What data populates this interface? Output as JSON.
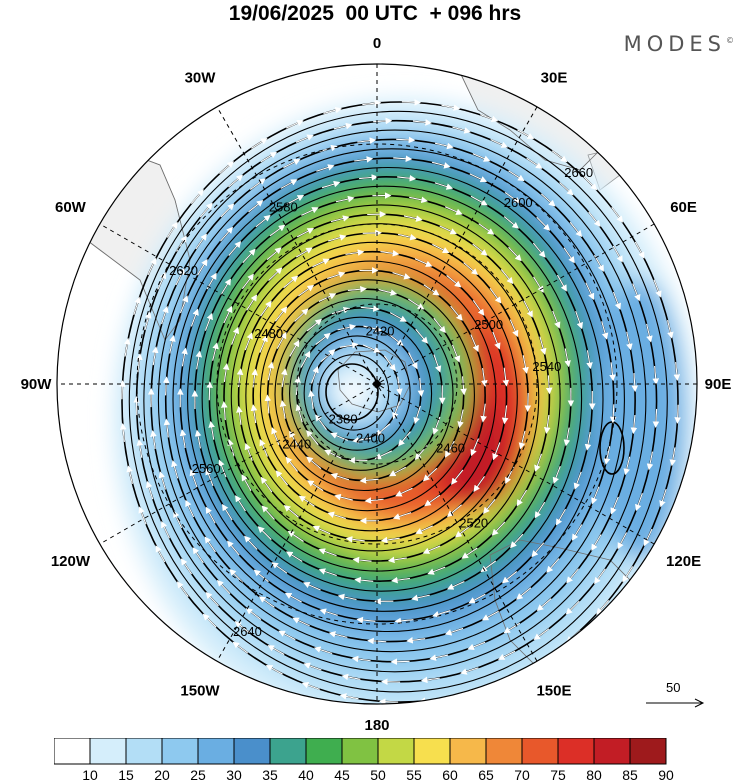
{
  "header": {
    "title": "19/06/2025  00 UTC  + 096 hrs",
    "brand": "MODES",
    "brand_mark": "©"
  },
  "map": {
    "projection": "south-polar-stereographic",
    "longitude_labels": [
      "0",
      "30E",
      "60E",
      "90E",
      "120E",
      "150E",
      "180",
      "150W",
      "120W",
      "90W",
      "60W",
      "30W"
    ],
    "contour_labels": [
      "2380",
      "2400",
      "2420",
      "2440",
      "2460",
      "2480",
      "2500",
      "2520",
      "2540",
      "2560",
      "2580",
      "2600",
      "2620",
      "2640",
      "2660"
    ],
    "vector_reference": "50",
    "colors": {
      "ocean": "#ffffff",
      "land": "#f0f0f0",
      "wind_vector": "#ffffff",
      "contour": "#000000"
    }
  },
  "colorbar": {
    "levels": [
      "10",
      "15",
      "20",
      "25",
      "30",
      "35",
      "40",
      "45",
      "50",
      "55",
      "60",
      "65",
      "70",
      "75",
      "80",
      "85",
      "90"
    ],
    "colors": [
      "#ffffff",
      "#d5eefb",
      "#b3def6",
      "#8ec9ef",
      "#6aaee2",
      "#4a8fcb",
      "#3ca38e",
      "#3fae4f",
      "#80c242",
      "#c3d845",
      "#f7df4e",
      "#f6b84a",
      "#ef8738",
      "#e8582b",
      "#dc2f27",
      "#c21d25",
      "#9e1a1c"
    ]
  }
}
